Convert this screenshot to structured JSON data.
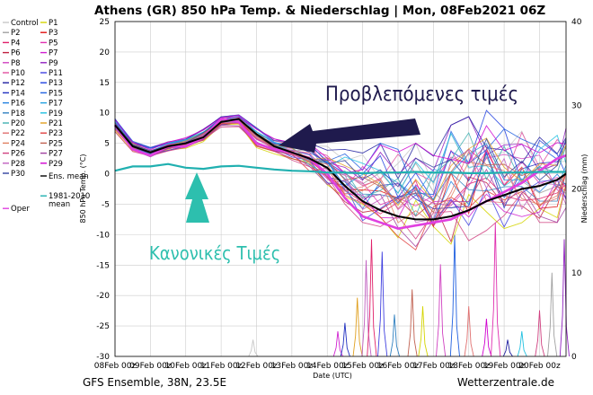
{
  "chart_data": {
    "type": "line",
    "title": "Athens  (GR)  850 hPa Temp. & Niederschlag | Mon, 08Feb2021 06Z",
    "ylabel_left": "850 hPa Temp. (°C)",
    "ylabel_right": "Niederschlag (mm)",
    "xlabel": "Date (UTC)",
    "ylim_left": [
      -30,
      25
    ],
    "ylim_right": [
      0,
      40
    ],
    "yticks_left": [
      25,
      20,
      15,
      10,
      5,
      0,
      -5,
      -10,
      -15,
      -20,
      -25,
      -30
    ],
    "yticks_right": [
      40,
      30,
      20,
      10,
      0
    ],
    "xlim": [
      0,
      12.75
    ],
    "x_tick_labels": [
      "08Feb 00z",
      "09Feb 00z",
      "10Feb 00z",
      "11Feb 00z",
      "12Feb 00z",
      "13Feb 00z",
      "14Feb 00z",
      "15Feb 00z",
      "16Feb 00z",
      "17Feb 00z",
      "18Feb 00z",
      "19Feb 00z",
      "20Feb 00z"
    ],
    "grid": true,
    "legend_placement": "left",
    "legend": [
      {
        "name": "Control",
        "color": "#c8c8c8"
      },
      {
        "name": "P1",
        "color": "#d4d400"
      },
      {
        "name": "P2",
        "color": "#a0a0a0"
      },
      {
        "name": "P3",
        "color": "#e01010"
      },
      {
        "name": "P4",
        "color": "#e0206a"
      },
      {
        "name": "P5",
        "color": "#e030b0"
      },
      {
        "name": "P6",
        "color": "#c02040"
      },
      {
        "name": "P7",
        "color": "#d020d0"
      },
      {
        "name": "P8",
        "color": "#d040c0"
      },
      {
        "name": "P9",
        "color": "#9020c0"
      },
      {
        "name": "P10",
        "color": "#e050a0"
      },
      {
        "name": "P11",
        "color": "#4040e0"
      },
      {
        "name": "P12",
        "color": "#2020a0"
      },
      {
        "name": "P13",
        "color": "#2040e0"
      },
      {
        "name": "P14",
        "color": "#2030c0"
      },
      {
        "name": "P15",
        "color": "#2060e0"
      },
      {
        "name": "P16",
        "color": "#2080e0"
      },
      {
        "name": "P17",
        "color": "#20a0e0"
      },
      {
        "name": "P18",
        "color": "#3080c0"
      },
      {
        "name": "P19",
        "color": "#20c0e0"
      },
      {
        "name": "P20",
        "color": "#40b0b0"
      },
      {
        "name": "P21",
        "color": "#e0a020"
      },
      {
        "name": "P22",
        "color": "#e07070"
      },
      {
        "name": "P23",
        "color": "#e04040"
      },
      {
        "name": "P24",
        "color": "#e08060"
      },
      {
        "name": "P25",
        "color": "#c06050"
      },
      {
        "name": "P26",
        "color": "#d04080"
      },
      {
        "name": "P27",
        "color": "#a040a0"
      },
      {
        "name": "P28",
        "color": "#c060c0"
      },
      {
        "name": "P29",
        "color": "#d000d0"
      },
      {
        "name": "P30",
        "color": "#3040a0"
      },
      {
        "name": "Ens. mean",
        "color": "#000000"
      },
      {
        "name": "1981-2010 mean",
        "color": "#20b0b0"
      },
      {
        "name": "Oper",
        "color": "#e040e0"
      }
    ],
    "climate_mean": {
      "x": [
        0,
        0.5,
        1,
        1.5,
        2,
        2.5,
        3,
        3.5,
        4,
        4.5,
        5,
        5.5,
        6,
        6.5,
        7,
        7.5,
        8,
        8.5,
        9,
        9.5,
        10,
        10.5,
        11,
        11.5,
        12,
        12.5,
        12.75
      ],
      "y": [
        0.5,
        1.2,
        1.2,
        1.6,
        1.0,
        0.8,
        1.2,
        1.3,
        1.0,
        0.7,
        0.5,
        0.4,
        0.2,
        0.2,
        0.1,
        0.2,
        0.2,
        0.3,
        0.2,
        0.2,
        0.1,
        0.1,
        0.2,
        0.2,
        0.3,
        0.3,
        0.3
      ]
    },
    "ensemble_mean": {
      "x": [
        0,
        0.5,
        1,
        1.5,
        2,
        2.5,
        3,
        3.5,
        4,
        4.5,
        5,
        5.5,
        6,
        6.5,
        7,
        7.5,
        8,
        8.5,
        9,
        9.5,
        10,
        10.5,
        11,
        11.5,
        12,
        12.5,
        12.75
      ],
      "y": [
        8,
        4.5,
        3.5,
        4.5,
        5,
        6,
        8.5,
        9,
        6.5,
        4.5,
        3.5,
        2.5,
        1,
        -2,
        -4.5,
        -6,
        -7,
        -7.5,
        -7.5,
        -7,
        -6,
        -4.5,
        -3.5,
        -2.5,
        -2,
        -1,
        0
      ]
    },
    "oper": {
      "x": [
        0,
        0.5,
        1,
        1.5,
        2,
        2.5,
        3,
        3.5,
        4,
        4.5,
        5,
        5.5,
        6,
        6.5,
        7,
        7.5,
        8,
        8.5,
        9,
        9.5,
        10,
        10.5,
        11,
        11.5,
        12,
        12.5,
        12.75
      ],
      "y": [
        8,
        4,
        3,
        4.5,
        4.5,
        6,
        9,
        8.5,
        5,
        4,
        3.5,
        2.5,
        0,
        -4,
        -7,
        -8,
        -9,
        -8.5,
        -8,
        -7.5,
        -6,
        -4.5,
        -3,
        -1.5,
        0.5,
        2.5,
        3
      ]
    },
    "members_upper": {
      "x": [
        0,
        0.5,
        1,
        1.5,
        2,
        2.5,
        3,
        3.5,
        4,
        4.5,
        5,
        5.5,
        6,
        6.5,
        7,
        7.5,
        8,
        8.5,
        9,
        9.5,
        10,
        10.5,
        11,
        11.5,
        12,
        12.5,
        12.75
      ],
      "y": [
        9.5,
        5.5,
        4.5,
        5.5,
        6,
        7.5,
        9.5,
        10,
        8,
        6,
        5.5,
        5,
        4.5,
        4,
        4,
        5,
        4,
        5,
        3,
        8,
        11,
        12,
        8,
        7,
        6,
        7,
        7.5
      ]
    },
    "members_lower": {
      "x": [
        0,
        0.5,
        1,
        1.5,
        2,
        2.5,
        3,
        3.5,
        4,
        4.5,
        5,
        5.5,
        6,
        6.5,
        7,
        7.5,
        8,
        8.5,
        9,
        9.5,
        10,
        10.5,
        11,
        11.5,
        12,
        12.5,
        12.75
      ],
      "y": [
        6.5,
        3.5,
        2.5,
        3.5,
        4,
        5,
        7.5,
        7.5,
        4,
        3,
        2,
        0,
        -2,
        -5,
        -8,
        -10,
        -12,
        -12.5,
        -12,
        -12,
        -11,
        -10,
        -9,
        -9,
        -8,
        -8,
        -8
      ]
    },
    "precip_peaks": {
      "x": [
        3.9,
        6.3,
        6.5,
        6.85,
        7.1,
        7.25,
        7.55,
        7.9,
        8.4,
        8.7,
        9.2,
        9.6,
        10.0,
        10.5,
        10.75,
        11.1,
        11.5,
        12.0,
        12.35,
        12.7
      ],
      "y": [
        2,
        3,
        4,
        7,
        11.5,
        14,
        12.5,
        5,
        8,
        6,
        11,
        14.5,
        6,
        4.5,
        16,
        2,
        3,
        5.5,
        10,
        14
      ]
    }
  },
  "annotations": {
    "forecast_label": "Προβλεπόμενες τιμές",
    "normal_label": "Κανονικές Τιμές",
    "forecast_color": "#1f1a4d",
    "normal_color": "#2dbfae"
  },
  "footer": {
    "left": "GFS Ensemble, 38N, 23.5E",
    "right": "Wetterzentrale.de"
  }
}
